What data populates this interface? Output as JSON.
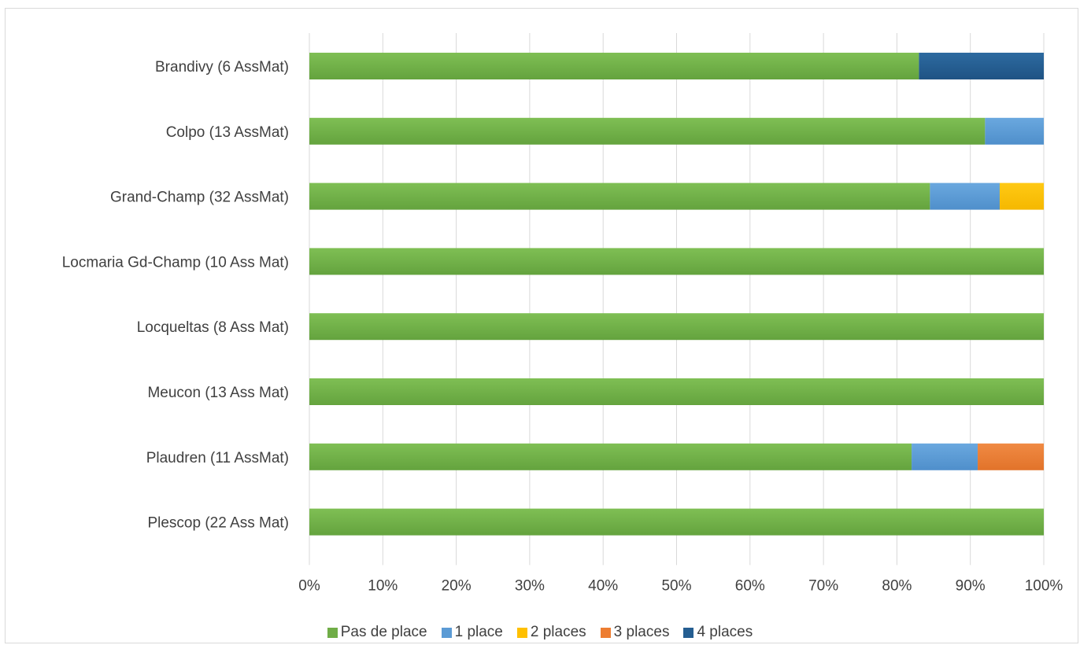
{
  "chart_data": {
    "type": "bar",
    "orientation": "horizontal",
    "stacked": "percent",
    "title": "",
    "xlabel": "",
    "ylabel": "",
    "xlim": [
      0,
      100
    ],
    "x_ticks": [
      "0%",
      "10%",
      "20%",
      "30%",
      "40%",
      "50%",
      "60%",
      "70%",
      "80%",
      "90%",
      "100%"
    ],
    "grid": true,
    "legend_position": "bottom",
    "categories": [
      "Brandivy (6 AssMat)",
      "Colpo (13 AssMat)",
      "Grand-Champ (32 AssMat)",
      "Locmaria Gd-Champ (10 Ass Mat)",
      "Locqueltas (8 Ass Mat)",
      "Meucon (13 Ass Mat)",
      "Plaudren (11 AssMat)",
      "Plescop (22 Ass Mat)"
    ],
    "series": [
      {
        "name": "Pas de place",
        "color": "#70ad47",
        "values": [
          83,
          92,
          84.5,
          100,
          100,
          100,
          82,
          100
        ]
      },
      {
        "name": "1 place",
        "color": "#5b9bd5",
        "values": [
          0,
          8,
          9.5,
          0,
          0,
          0,
          9,
          0
        ]
      },
      {
        "name": "2 places",
        "color": "#ffc000",
        "values": [
          0,
          0,
          6,
          0,
          0,
          0,
          0,
          0
        ]
      },
      {
        "name": "3 places",
        "color": "#ed7d31",
        "values": [
          0,
          0,
          0,
          0,
          0,
          0,
          9,
          0
        ]
      },
      {
        "name": "4 places",
        "color": "#255e91",
        "values": [
          17,
          0,
          0,
          0,
          0,
          0,
          0,
          0
        ]
      }
    ]
  }
}
